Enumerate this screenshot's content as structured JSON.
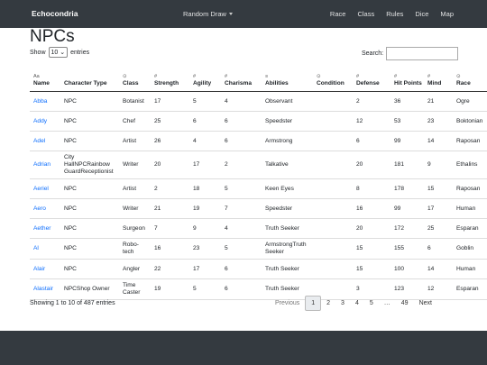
{
  "navbar": {
    "brand": "Echocondria",
    "dropdown": "Random Draw",
    "links": [
      "Race",
      "Class",
      "Rules",
      "Dice",
      "Map"
    ]
  },
  "title": "NPCs",
  "length_control": {
    "before": "Show",
    "selected": "10",
    "after": "entries"
  },
  "search_label": "Search:",
  "table": {
    "columns": [
      {
        "icon": "Aa",
        "label": "Name"
      },
      {
        "label": "Character Type"
      },
      {
        "icon": "⊙",
        "label": "Class"
      },
      {
        "icon": "#",
        "label": "Strength"
      },
      {
        "icon": "#",
        "label": "Agility"
      },
      {
        "icon": "#",
        "label": "Charisma"
      },
      {
        "icon": "≡",
        "label": "Abilities"
      },
      {
        "icon": "⊙",
        "label": "Condition"
      },
      {
        "icon": "#",
        "label": "Defense"
      },
      {
        "icon": "#",
        "label": "Hit Points"
      },
      {
        "icon": "#",
        "label": "Mind"
      },
      {
        "icon": "⊙",
        "label": "Race"
      }
    ],
    "rows": [
      [
        "Abba",
        "NPC",
        "Botanist",
        17,
        5,
        4,
        "Observant",
        null,
        2,
        36,
        21,
        "Ogre"
      ],
      [
        "Addy",
        "NPC",
        "Chef",
        25,
        6,
        6,
        "Speedster",
        null,
        12,
        53,
        23,
        "Boktonian"
      ],
      [
        "Adel",
        "NPC",
        "Artist",
        26,
        4,
        6,
        "Armstrong",
        null,
        6,
        99,
        14,
        "Raposan"
      ],
      [
        "Adrian",
        "City HallNPCRainbow GuardReceptionist",
        "Writer",
        20,
        17,
        2,
        "Talkative",
        null,
        20,
        181,
        9,
        "Ethalins"
      ],
      [
        "Aeriel",
        "NPC",
        "Artist",
        2,
        18,
        5,
        "Keen Eyes",
        null,
        8,
        178,
        15,
        "Raposan"
      ],
      [
        "Aero",
        "NPC",
        "Writer",
        21,
        19,
        7,
        "Speedster",
        null,
        16,
        99,
        17,
        "Human"
      ],
      [
        "Aether",
        "NPC",
        "Surgeon",
        7,
        9,
        4,
        "Truth Seeker",
        null,
        20,
        172,
        25,
        "Esparan"
      ],
      [
        "Al",
        "NPC",
        "Robo-tech",
        16,
        23,
        5,
        "ArmstrongTruth Seeker",
        null,
        15,
        155,
        6,
        "Goblin"
      ],
      [
        "Alair",
        "NPC",
        "Angler",
        22,
        17,
        6,
        "Truth Seeker",
        null,
        15,
        100,
        14,
        "Human"
      ],
      [
        "Alastair",
        "NPCShop Owner",
        "Time Caster",
        19,
        5,
        6,
        "Truth Seeker",
        null,
        3,
        123,
        12,
        "Esparan"
      ]
    ]
  },
  "info": "Showing 1 to 10 of 487 entries",
  "pagination": {
    "previous": "Previous",
    "pages": [
      "1",
      "2",
      "3",
      "4",
      "5",
      "…",
      "49"
    ],
    "next": "Next"
  }
}
